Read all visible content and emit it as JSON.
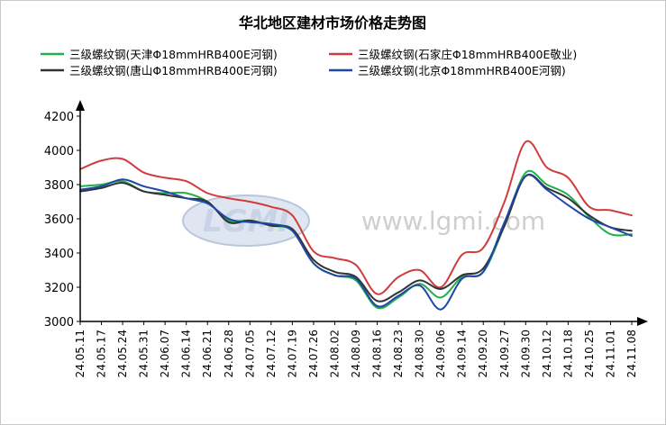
{
  "chart_data": {
    "type": "line",
    "title": "华北地区建材市场价格走势图",
    "watermark": "www.lgmi.com",
    "logo_text": "LGMI",
    "ylim": [
      3000,
      4200
    ],
    "yticks": [
      3000,
      3200,
      3400,
      3600,
      3800,
      4000,
      4200
    ],
    "xticks": [
      "24.05.11",
      "24.05.17",
      "24.05.24",
      "24.05.31",
      "24.06.07",
      "24.06.14",
      "24.06.21",
      "24.06.28",
      "24.07.05",
      "24.07.12",
      "24.07.19",
      "24.07.26",
      "24.08.02",
      "24.08.09",
      "24.08.16",
      "24.08.23",
      "24.08.30",
      "24.09.06",
      "24.09.14",
      "24.09.20",
      "24.09.27",
      "24.09.30",
      "24.10.12",
      "24.10.18",
      "24.10.25",
      "24.11.01",
      "24.11.08"
    ],
    "x": [
      "24.05.11",
      "24.05.17",
      "24.05.24",
      "24.05.31",
      "24.06.07",
      "24.06.14",
      "24.06.21",
      "24.06.28",
      "24.07.05",
      "24.07.12",
      "24.07.19",
      "24.07.26",
      "24.08.02",
      "24.08.09",
      "24.08.16",
      "24.08.23",
      "24.08.30",
      "24.09.06",
      "24.09.14",
      "24.09.20",
      "24.09.27",
      "24.09.30",
      "24.10.12",
      "24.10.18",
      "24.10.25",
      "24.11.01",
      "24.11.08"
    ],
    "series": [
      {
        "name": "三级螺纹钢(天津Φ18mmHRB400E河钢)",
        "color": "#22b04b",
        "values": [
          3790,
          3800,
          3820,
          3760,
          3750,
          3750,
          3700,
          3590,
          3590,
          3560,
          3530,
          3340,
          3270,
          3240,
          3080,
          3140,
          3220,
          3140,
          3260,
          3290,
          3560,
          3870,
          3800,
          3740,
          3610,
          3510,
          3510
        ]
      },
      {
        "name": "三级螺纹钢(石家庄Φ18mmHRB400E敬业)",
        "color": "#d03c3c",
        "values": [
          3890,
          3940,
          3950,
          3870,
          3840,
          3820,
          3750,
          3720,
          3700,
          3670,
          3620,
          3410,
          3370,
          3330,
          3160,
          3260,
          3300,
          3200,
          3390,
          3430,
          3700,
          4050,
          3900,
          3840,
          3670,
          3650,
          3620
        ]
      },
      {
        "name": "三级螺纹钢(唐山Φ18mmHRB400E河钢)",
        "color": "#333333",
        "values": [
          3760,
          3780,
          3810,
          3760,
          3740,
          3720,
          3700,
          3580,
          3590,
          3560,
          3540,
          3360,
          3290,
          3260,
          3120,
          3170,
          3240,
          3190,
          3270,
          3310,
          3560,
          3850,
          3780,
          3720,
          3620,
          3550,
          3530
        ]
      },
      {
        "name": "三级螺纹钢(北京Φ18mmHRB400E河钢)",
        "color": "#1f47a8",
        "values": [
          3770,
          3790,
          3830,
          3790,
          3760,
          3720,
          3690,
          3600,
          3580,
          3570,
          3530,
          3340,
          3270,
          3250,
          3090,
          3150,
          3210,
          3070,
          3250,
          3290,
          3580,
          3850,
          3770,
          3680,
          3600,
          3550,
          3500
        ]
      }
    ],
    "legend_position": "top",
    "grid": false
  }
}
